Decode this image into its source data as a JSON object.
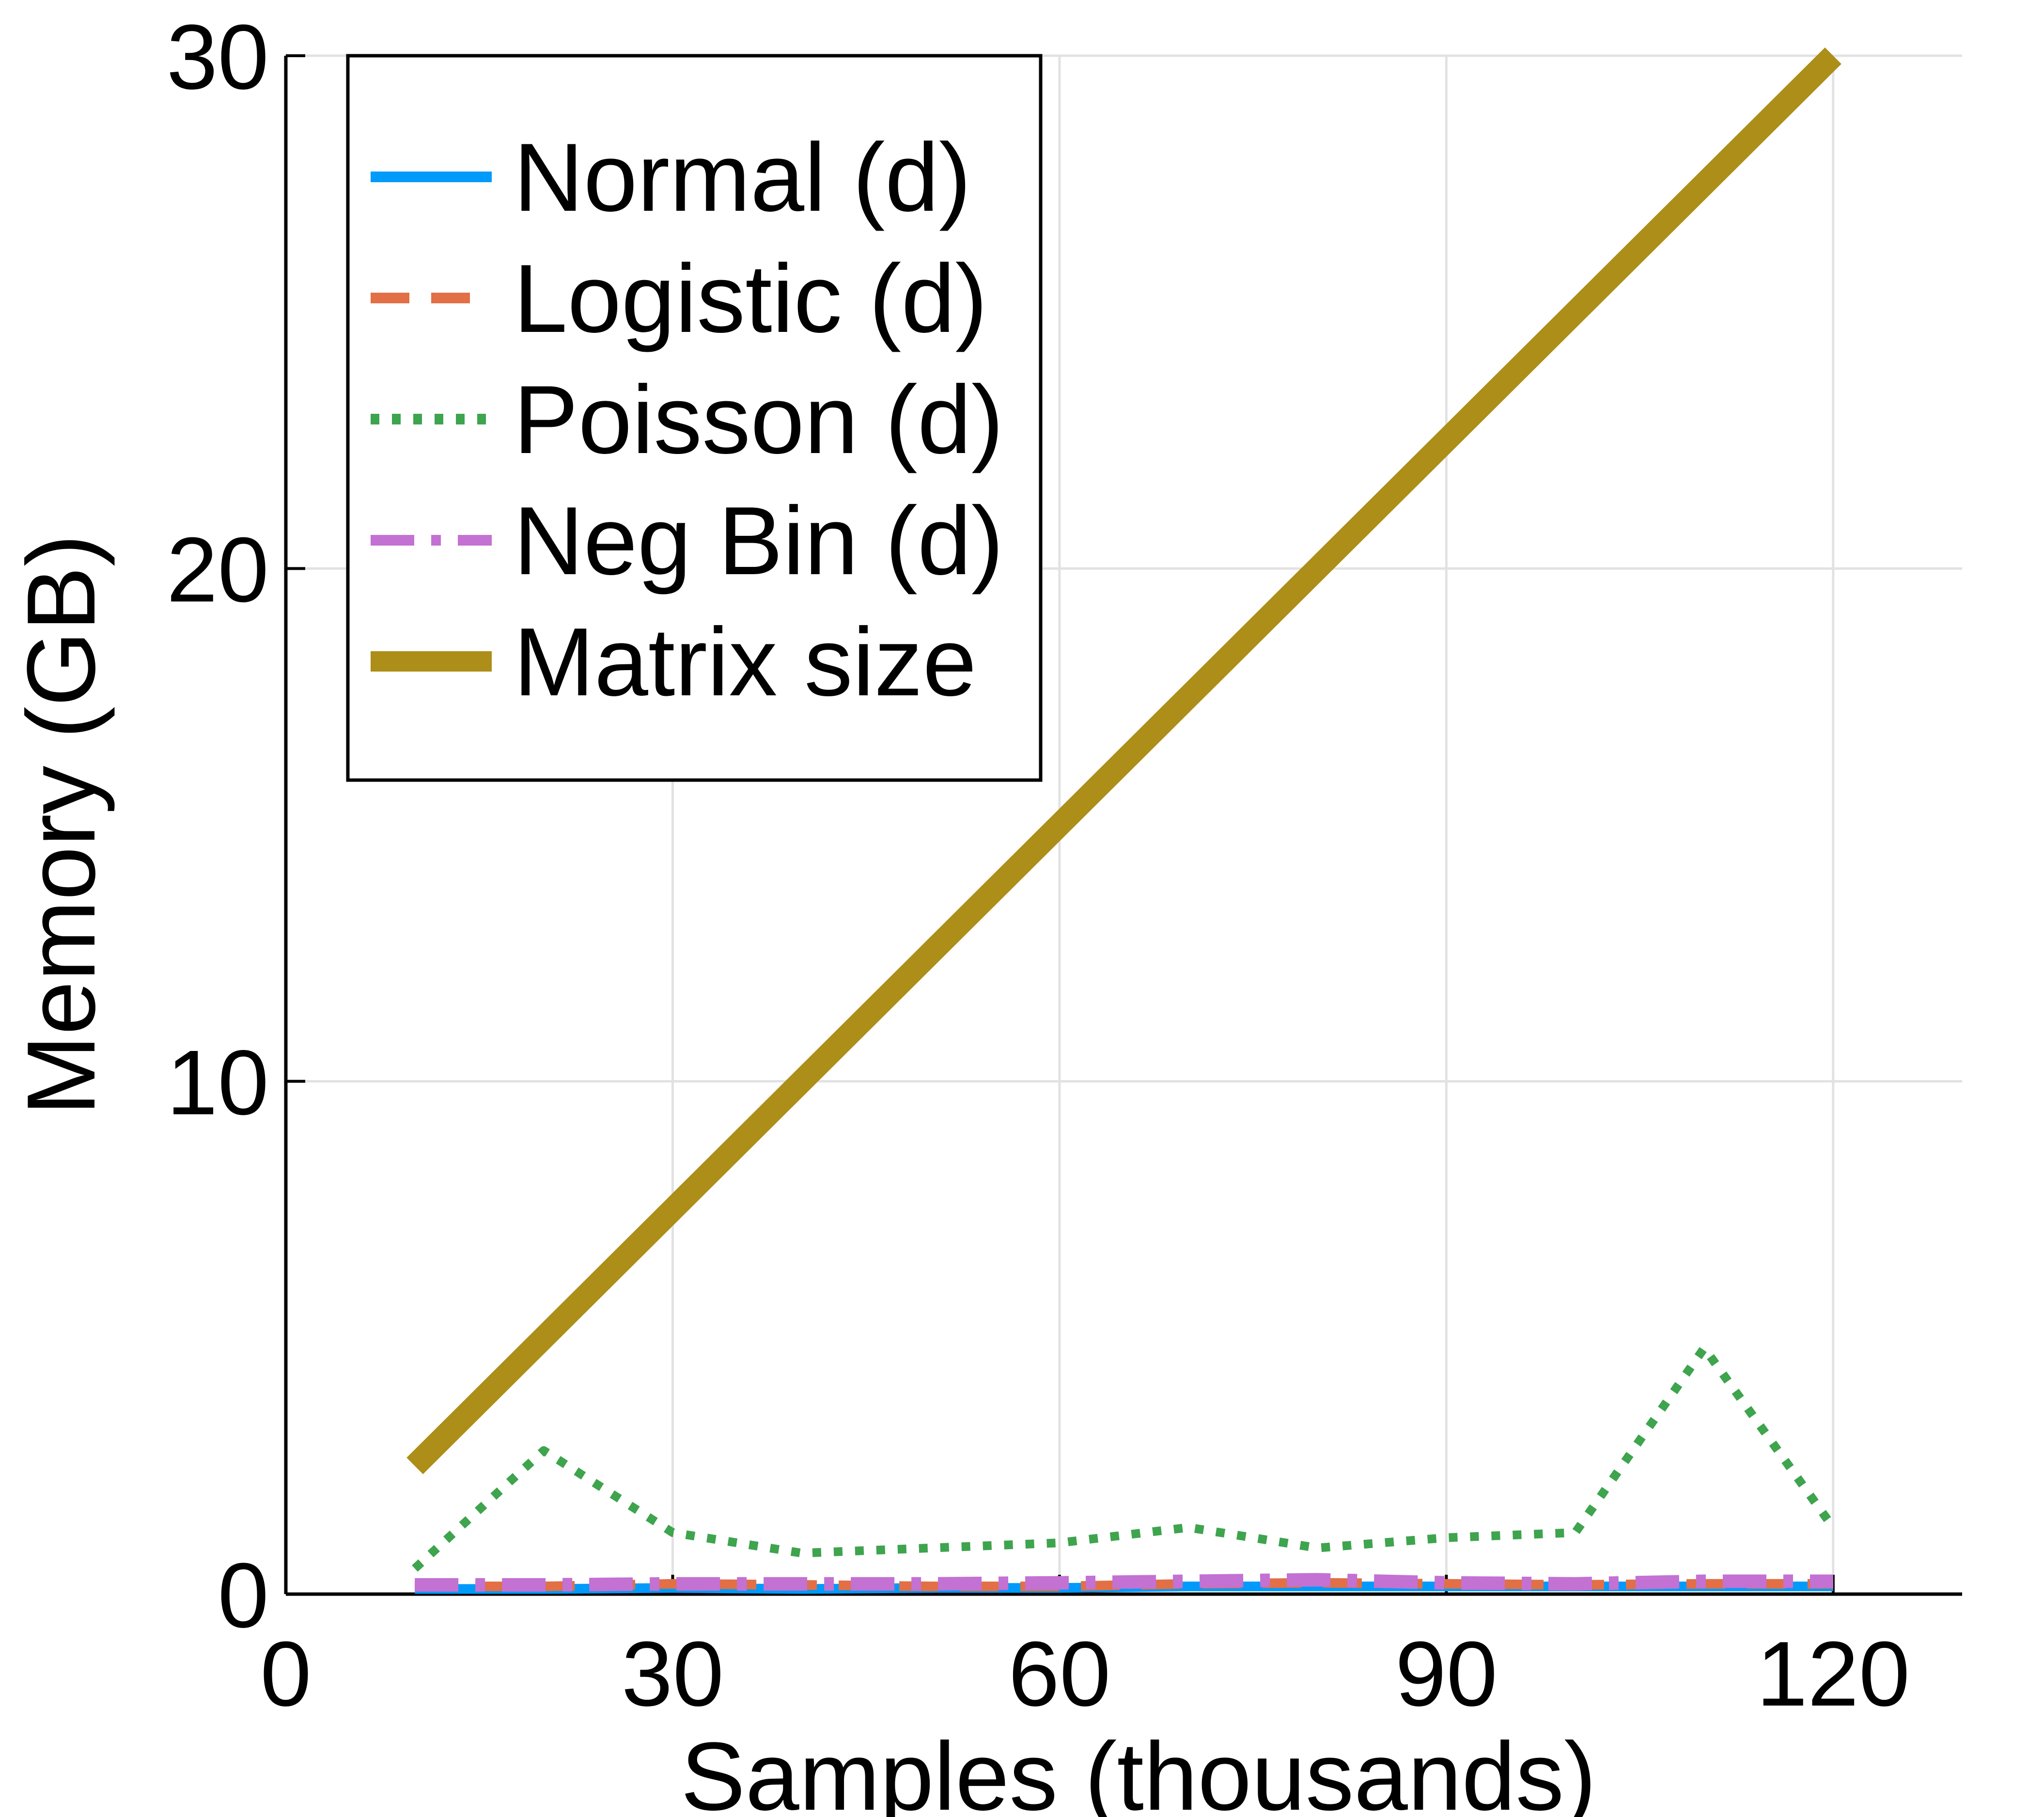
{
  "chart_data": {
    "type": "line",
    "title": "",
    "xlabel": "Samples (thousands)",
    "ylabel": "Memory (GB)",
    "xlim": [
      0,
      130
    ],
    "ylim": [
      0,
      30
    ],
    "xticks": [
      0,
      30,
      60,
      90,
      120
    ],
    "yticks": [
      0,
      10,
      20,
      30
    ],
    "grid": true,
    "legend_position": "top-left",
    "x": [
      10,
      20,
      30,
      40,
      50,
      60,
      70,
      80,
      90,
      100,
      110,
      120
    ],
    "series": [
      {
        "name": "Normal (d)",
        "color": "#009AFA",
        "style": "solid",
        "values": [
          0.1,
          0.1,
          0.12,
          0.1,
          0.12,
          0.12,
          0.15,
          0.15,
          0.15,
          0.15,
          0.15,
          0.15
        ]
      },
      {
        "name": "Logistic (d)",
        "color": "#E26F46",
        "style": "dashed",
        "values": [
          0.15,
          0.15,
          0.2,
          0.18,
          0.15,
          0.15,
          0.2,
          0.22,
          0.2,
          0.18,
          0.2,
          0.2
        ]
      },
      {
        "name": "Poisson (d)",
        "color": "#3EA44E",
        "style": "dotted",
        "values": [
          0.5,
          2.8,
          1.2,
          0.8,
          0.9,
          1.0,
          1.3,
          0.9,
          1.1,
          1.2,
          4.8,
          1.3
        ]
      },
      {
        "name": "Neg Bin (d)",
        "color": "#C371D2",
        "style": "dashdot",
        "values": [
          0.18,
          0.18,
          0.2,
          0.2,
          0.2,
          0.22,
          0.25,
          0.28,
          0.22,
          0.2,
          0.25,
          0.25
        ]
      },
      {
        "name": "Matrix size",
        "color": "#AC8E18",
        "style": "thick",
        "values": [
          2.5,
          5.0,
          7.5,
          10.0,
          12.5,
          15.0,
          17.5,
          20.0,
          22.5,
          25.0,
          27.5,
          30.0
        ]
      }
    ]
  }
}
